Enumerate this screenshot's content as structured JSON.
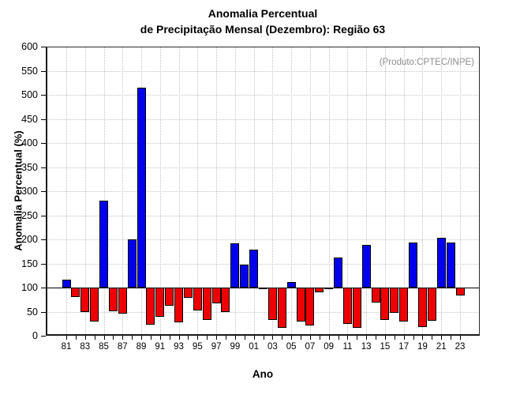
{
  "title": {
    "line1": "Anomalia Percentual",
    "line2": "de Precipitação Mensal (Dezembro): Região 63"
  },
  "annotation": "(Produto:CPTEC/INPE)",
  "chart_data": {
    "type": "bar",
    "title": "Anomalia Percentual de Precipitação Mensal (Dezembro): Região 63",
    "xlabel": "Ano",
    "ylabel": "Anomalia Percentual (%)",
    "ylim": [
      0,
      600
    ],
    "ytick_step": 50,
    "baseline": 100,
    "grid": true,
    "legend": "none",
    "categories": [
      "81",
      "82",
      "83",
      "84",
      "85",
      "86",
      "87",
      "88",
      "89",
      "90",
      "91",
      "92",
      "93",
      "94",
      "95",
      "96",
      "97",
      "98",
      "99",
      "00",
      "01",
      "02",
      "03",
      "04",
      "05",
      "06",
      "07",
      "08",
      "09",
      "10",
      "11",
      "12",
      "13",
      "14",
      "15",
      "16",
      "17",
      "18",
      "19",
      "20",
      "21",
      "22",
      "23"
    ],
    "values": [
      117,
      80,
      50,
      30,
      281,
      51,
      46,
      200,
      515,
      23,
      39,
      63,
      28,
      78,
      53,
      33,
      68,
      49,
      191,
      148,
      178,
      97,
      32,
      16,
      112,
      29,
      22,
      90,
      98,
      162,
      24,
      17,
      189,
      69,
      32,
      48,
      30,
      193,
      18,
      31,
      204,
      193,
      83
    ],
    "labeled_ticks": [
      "81",
      "83",
      "85",
      "87",
      "89",
      "91",
      "93",
      "95",
      "97",
      "99",
      "01",
      "03",
      "05",
      "07",
      "09",
      "11",
      "13",
      "15",
      "17",
      "19",
      "21",
      "23"
    ],
    "colors": {
      "above_baseline": "#0000ee",
      "below_baseline": "#ee0000",
      "bar_outline": "#000000",
      "grid": "#c3c3c3",
      "annotation_text": "#8c8c8c",
      "axis": "#000000"
    }
  }
}
